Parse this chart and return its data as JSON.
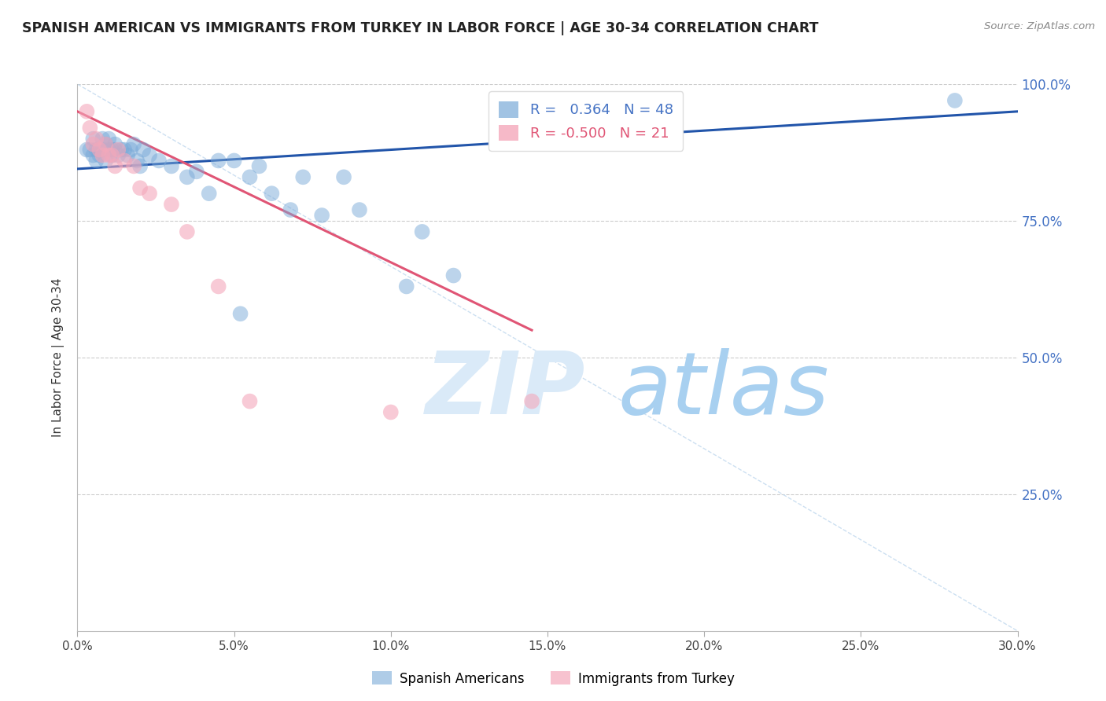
{
  "title": "SPANISH AMERICAN VS IMMIGRANTS FROM TURKEY IN LABOR FORCE | AGE 30-34 CORRELATION CHART",
  "source": "Source: ZipAtlas.com",
  "ylabel": "In Labor Force | Age 30-34",
  "xlim": [
    0.0,
    30.0
  ],
  "ylim": [
    0.0,
    100.0
  ],
  "xticks": [
    0.0,
    5.0,
    10.0,
    15.0,
    20.0,
    25.0,
    30.0
  ],
  "yticks": [
    0.0,
    25.0,
    50.0,
    75.0,
    100.0
  ],
  "xtick_labels": [
    "0.0%",
    "5.0%",
    "10.0%",
    "15.0%",
    "20.0%",
    "25.0%",
    "30.0%"
  ],
  "ytick_labels_right": [
    "",
    "25.0%",
    "50.0%",
    "75.0%",
    "100.0%"
  ],
  "blue_R": 0.364,
  "blue_N": 48,
  "pink_R": -0.5,
  "pink_N": 21,
  "trend_blue_color": "#2255AA",
  "trend_pink_color": "#E05575",
  "blue_dot_color": "#7AAAD8",
  "pink_dot_color": "#F4A8BB",
  "grid_color": "#CCCCCC",
  "blue_x": [
    0.3,
    0.4,
    0.5,
    0.5,
    0.6,
    0.6,
    0.7,
    0.7,
    0.8,
    0.8,
    0.9,
    0.9,
    1.0,
    1.0,
    1.1,
    1.1,
    1.2,
    1.2,
    1.3,
    1.4,
    1.5,
    1.6,
    1.7,
    1.8,
    1.9,
    2.0,
    2.1,
    2.3,
    2.6,
    3.0,
    3.5,
    3.8,
    4.2,
    4.5,
    5.0,
    5.5,
    5.8,
    6.2,
    6.8,
    7.2,
    7.8,
    8.5,
    9.0,
    10.5,
    11.0,
    12.0,
    28.0,
    5.2
  ],
  "blue_y": [
    88,
    88,
    90,
    87,
    88,
    86,
    88,
    87,
    90,
    88,
    89,
    86,
    88,
    90,
    87,
    88,
    88,
    89,
    87,
    88,
    88,
    87,
    88,
    89,
    86,
    85,
    88,
    87,
    86,
    85,
    83,
    84,
    80,
    86,
    86,
    83,
    85,
    80,
    77,
    83,
    76,
    83,
    77,
    63,
    73,
    65,
    97,
    58
  ],
  "pink_x": [
    0.3,
    0.4,
    0.5,
    0.6,
    0.7,
    0.8,
    0.9,
    1.0,
    1.1,
    1.2,
    1.3,
    1.5,
    1.8,
    2.0,
    2.3,
    3.0,
    3.5,
    4.5,
    5.5,
    10.0,
    14.5
  ],
  "pink_y": [
    95,
    92,
    89,
    90,
    88,
    87,
    89,
    87,
    87,
    85,
    88,
    86,
    85,
    81,
    80,
    78,
    73,
    63,
    42,
    40,
    42
  ],
  "blue_trend_x0": 0.0,
  "blue_trend_x1": 30.0,
  "blue_trend_y0": 84.5,
  "blue_trend_y1": 95.0,
  "pink_trend_x0": 0.0,
  "pink_trend_x1": 14.5,
  "pink_trend_y0": 95.0,
  "pink_trend_y1": 55.0,
  "ref_line_x": [
    0.0,
    30.0
  ],
  "ref_line_y": [
    100.0,
    0.0
  ]
}
